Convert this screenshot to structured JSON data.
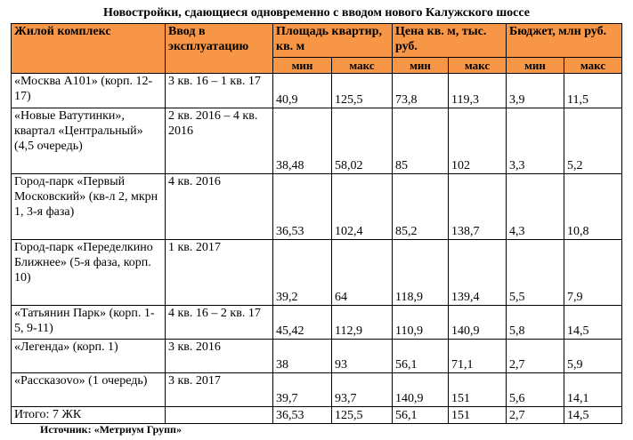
{
  "header": {
    "title": "Новостройки, сдающиеся одновременно с вводом нового Калужского шоссе"
  },
  "table": {
    "columns": [
      "Жилой комплекс",
      "Ввод в эксплуатацию",
      "Площадь квартир, кв. м",
      "Цена кв. м, тыс. руб.",
      "Бюджет, млн руб."
    ],
    "subcolumns": [
      "мин",
      "макс",
      "мин",
      "макс",
      "мин",
      "макс"
    ],
    "rows": [
      [
        "«Москва А101» (корп. 12-17)",
        "3 кв. 16 – 1 кв. 17",
        "40,9",
        "125,5",
        "73,8",
        "119,3",
        "3,9",
        "11,5"
      ],
      [
        "«Новые Ватутинки», квартал «Центральный» (4,5 очередь)",
        "2 кв. 2016 – 4 кв. 2016",
        "38,48",
        "58,02",
        "85",
        "102",
        "3,3",
        "5,2"
      ],
      [
        "Город-парк «Первый Московский» (кв-л 2, мкрн 1, 3-я фаза)",
        "4 кв. 2016",
        "36,53",
        "102,4",
        "85,2",
        "138,7",
        "4,3",
        "10,8"
      ],
      [
        "Город-парк «Переделкино Ближнее» (5-я фаза, корп. 10)",
        "1 кв. 2017",
        "39,2",
        "64",
        "118,9",
        "139,4",
        "5,5",
        "7,9"
      ],
      [
        "«Татьянин Парк» (корп. 1-5, 9-11)",
        "4 кв. 16 – 2 кв. 17",
        "45,42",
        "112,9",
        "110,9",
        "140,9",
        "5,8",
        "14,5"
      ],
      [
        "«Легенда» (корп. 1)",
        "3 кв. 2016",
        "38",
        "93",
        "56,1",
        "71,1",
        "2,7",
        "5,9"
      ],
      [
        "«Рассказоvо» (1 очередь)",
        "3 кв. 2017",
        "39,7",
        "93,7",
        "140,9",
        "151",
        "5,6",
        "14,1"
      ],
      [
        "Итого: 7 ЖК",
        "",
        "36,53",
        "125,5",
        "56,1",
        "151",
        "2,7",
        "14,5"
      ]
    ]
  },
  "footer": {
    "source": "Источник: «Метриум Групп»"
  }
}
